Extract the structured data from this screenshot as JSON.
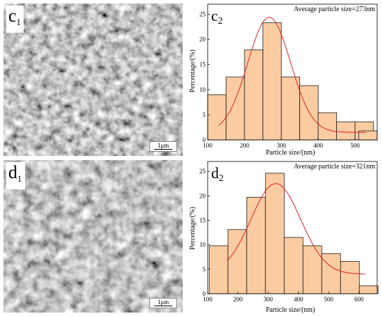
{
  "images": [
    {
      "label": "c",
      "label_sub": "1",
      "scale": "1μm"
    },
    {
      "label": "d",
      "label_sub": "1",
      "scale": "1μm"
    }
  ],
  "chart_data": [
    {
      "type": "bar",
      "panel_label": "c",
      "panel_sub": "2",
      "annotation": "Average particle size=273nm",
      "xlabel": "Particle size/(nm)",
      "ylabel": "Percentage/(%)",
      "xlim": [
        100,
        560
      ],
      "ylim": [
        0,
        27
      ],
      "xticks": [
        100,
        200,
        300,
        400,
        500
      ],
      "yticks": [
        0,
        5,
        10,
        15,
        20,
        25
      ],
      "bin_width": 50,
      "bin_starts": [
        100,
        150,
        200,
        250,
        300,
        350,
        400,
        450,
        500
      ],
      "values": [
        9.0,
        12.5,
        17.9,
        23.3,
        12.5,
        10.8,
        5.4,
        3.6,
        3.6
      ],
      "extra_bar": {
        "x": 510,
        "width": 50,
        "value": 1.8
      },
      "fit": {
        "center": 267,
        "sigma": 58,
        "amp": 22.9,
        "baseline": 1.5,
        "x_range": [
          130,
          530
        ]
      },
      "colors": {
        "bar_fill": "#fbcba1",
        "bar_stroke": "#1a1a1a",
        "fit": "#e02020"
      },
      "grid": false
    },
    {
      "type": "bar",
      "panel_label": "d",
      "panel_sub": "2",
      "annotation": "Average particle size=321nm",
      "xlabel": "Particle size/(nm)",
      "ylabel": "Percentage/(%)",
      "xlim": [
        100,
        660
      ],
      "ylim": [
        0,
        27
      ],
      "xticks": [
        100,
        200,
        300,
        400,
        500,
        600
      ],
      "yticks": [
        0,
        5,
        10,
        15,
        20,
        25
      ],
      "bin_width": 62,
      "bin_starts": [
        105,
        167,
        229,
        291,
        353,
        415,
        477,
        539,
        601
      ],
      "values": [
        9.8,
        13.1,
        19.7,
        24.6,
        11.5,
        9.8,
        8.2,
        6.6,
        1.6
      ],
      "fit": {
        "center": 325,
        "sigma": 82,
        "amp": 18.5,
        "baseline": 4.0,
        "x_range": [
          165,
          620
        ]
      },
      "colors": {
        "bar_fill": "#fbcba1",
        "bar_stroke": "#1a1a1a",
        "fit": "#e02020"
      },
      "grid": false
    }
  ]
}
